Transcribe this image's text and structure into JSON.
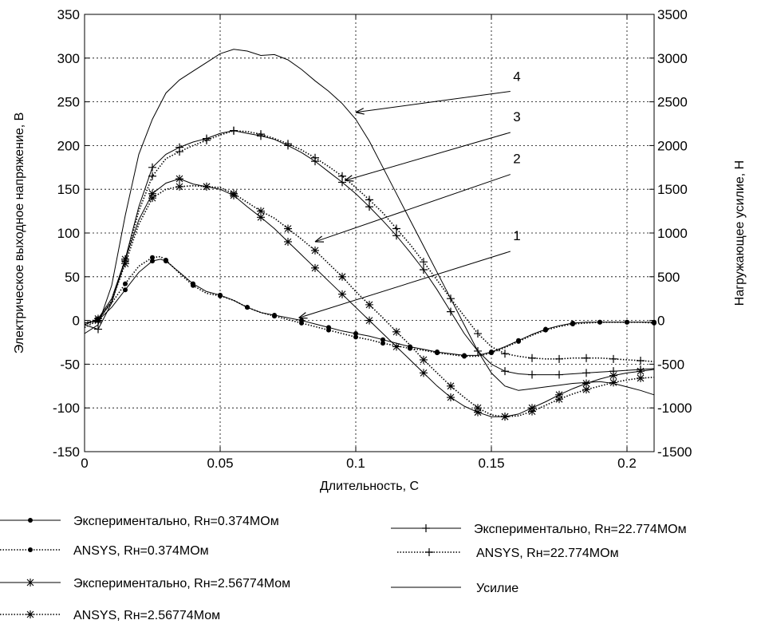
{
  "chart_data": {
    "type": "line",
    "xlabel": "Длительность, С",
    "ylabel": "Электрическое выходное напряжение, В",
    "y2label": "Нагружающее усилие, Н",
    "xlim": [
      0,
      0.21
    ],
    "ylim": [
      -150,
      350
    ],
    "y2lim": [
      -1500,
      3500
    ],
    "grid": true,
    "legend_position": "bottom",
    "x_ticks": [
      "0",
      "0.05",
      "0.1",
      "0.15",
      "0.2"
    ],
    "y_ticks": [
      "-150",
      "-100",
      "-50",
      "0",
      "50",
      "100",
      "150",
      "200",
      "250",
      "300",
      "350"
    ],
    "y2_ticks": [
      "-1500",
      "-1000",
      "-500",
      "0",
      "500",
      "1000",
      "1500",
      "2000",
      "2500",
      "3000",
      "3500"
    ],
    "callouts": [
      "1",
      "2",
      "3",
      "4"
    ],
    "series": [
      {
        "name": "Экспериментально, Rн=0.374MOм",
        "axis": "left",
        "style": "solid",
        "marker": "dot",
        "x": [
          0,
          0.005,
          0.01,
          0.015,
          0.02,
          0.025,
          0.028,
          0.03,
          0.035,
          0.04,
          0.045,
          0.05,
          0.055,
          0.06,
          0.065,
          0.07,
          0.075,
          0.08,
          0.085,
          0.09,
          0.095,
          0.1,
          0.105,
          0.11,
          0.115,
          0.12,
          0.125,
          0.13,
          0.135,
          0.14,
          0.145,
          0.15,
          0.155,
          0.16,
          0.165,
          0.17,
          0.175,
          0.18,
          0.185,
          0.19,
          0.195,
          0.2,
          0.205,
          0.21
        ],
        "y": [
          -3,
          0,
          15,
          35,
          55,
          68,
          70,
          68,
          55,
          42,
          33,
          29,
          23,
          15,
          9,
          6,
          3,
          0,
          -4,
          -8,
          -12,
          -15,
          -18,
          -22,
          -26,
          -30,
          -33,
          -36,
          -38,
          -40,
          -40,
          -36,
          -30,
          -23,
          -16,
          -10,
          -6,
          -3,
          -2,
          -2,
          -2,
          -2,
          -2,
          -2
        ]
      },
      {
        "name": "ANSYS, Rн=0.374MOм",
        "axis": "left",
        "style": "dotted",
        "marker": "dot",
        "x": [
          0,
          0.005,
          0.01,
          0.015,
          0.02,
          0.025,
          0.028,
          0.03,
          0.035,
          0.04,
          0.045,
          0.05,
          0.055,
          0.06,
          0.065,
          0.07,
          0.075,
          0.08,
          0.085,
          0.09,
          0.095,
          0.1,
          0.105,
          0.11,
          0.115,
          0.12,
          0.125,
          0.13,
          0.135,
          0.14,
          0.145,
          0.15,
          0.155,
          0.16,
          0.165,
          0.17,
          0.175,
          0.18,
          0.185,
          0.19,
          0.195,
          0.2,
          0.205,
          0.21
        ],
        "y": [
          -3,
          2,
          20,
          42,
          62,
          72,
          73,
          69,
          54,
          40,
          31,
          28,
          23,
          15,
          9,
          5,
          1,
          -3,
          -7,
          -11,
          -15,
          -19,
          -22,
          -26,
          -29,
          -32,
          -34,
          -37,
          -39,
          -41,
          -41,
          -37,
          -31,
          -24,
          -17,
          -11,
          -7,
          -4,
          -3,
          -2,
          -2,
          -2,
          -2,
          -3
        ]
      },
      {
        "name": "Экспериментально, Rн=2.56774Мом",
        "axis": "left",
        "style": "solid",
        "marker": "star",
        "x": [
          0,
          0.005,
          0.01,
          0.015,
          0.02,
          0.025,
          0.03,
          0.035,
          0.04,
          0.045,
          0.05,
          0.055,
          0.06,
          0.065,
          0.07,
          0.075,
          0.08,
          0.085,
          0.09,
          0.095,
          0.1,
          0.105,
          0.11,
          0.115,
          0.12,
          0.125,
          0.13,
          0.135,
          0.14,
          0.145,
          0.15,
          0.155,
          0.16,
          0.165,
          0.17,
          0.175,
          0.18,
          0.185,
          0.19,
          0.195,
          0.2,
          0.205,
          0.21
        ],
        "y": [
          -5,
          2,
          25,
          70,
          115,
          145,
          157,
          162,
          156,
          153,
          150,
          143,
          130,
          118,
          105,
          90,
          75,
          60,
          45,
          30,
          15,
          0,
          -15,
          -30,
          -45,
          -60,
          -75,
          -88,
          -98,
          -105,
          -110,
          -110,
          -107,
          -100,
          -93,
          -85,
          -78,
          -72,
          -67,
          -63,
          -60,
          -58,
          -56
        ]
      },
      {
        "name": "ANSYS, Rн=2.56774Мом",
        "axis": "left",
        "style": "dotted",
        "marker": "star",
        "x": [
          0,
          0.005,
          0.01,
          0.015,
          0.02,
          0.025,
          0.03,
          0.035,
          0.04,
          0.045,
          0.05,
          0.055,
          0.06,
          0.065,
          0.07,
          0.075,
          0.08,
          0.085,
          0.09,
          0.095,
          0.1,
          0.105,
          0.11,
          0.115,
          0.12,
          0.125,
          0.13,
          0.135,
          0.14,
          0.145,
          0.15,
          0.155,
          0.16,
          0.165,
          0.17,
          0.175,
          0.18,
          0.185,
          0.19,
          0.195,
          0.2,
          0.205,
          0.21
        ],
        "y": [
          -8,
          0,
          22,
          65,
          110,
          140,
          150,
          153,
          154,
          153,
          152,
          145,
          135,
          125,
          117,
          105,
          93,
          80,
          65,
          50,
          33,
          18,
          3,
          -13,
          -28,
          -45,
          -60,
          -75,
          -88,
          -100,
          -108,
          -110,
          -109,
          -104,
          -97,
          -90,
          -84,
          -79,
          -75,
          -71,
          -68,
          -66,
          -65
        ]
      },
      {
        "name": "Экспериментально, Rн=22.774MOм",
        "axis": "left",
        "style": "solid",
        "marker": "plus",
        "x": [
          0,
          0.005,
          0.01,
          0.015,
          0.02,
          0.025,
          0.03,
          0.035,
          0.04,
          0.045,
          0.05,
          0.055,
          0.06,
          0.065,
          0.07,
          0.075,
          0.08,
          0.085,
          0.09,
          0.095,
          0.1,
          0.105,
          0.11,
          0.115,
          0.12,
          0.125,
          0.13,
          0.135,
          0.14,
          0.145,
          0.15,
          0.155,
          0.16,
          0.165,
          0.17,
          0.175,
          0.18,
          0.185,
          0.19,
          0.195,
          0.2,
          0.205,
          0.21
        ],
        "y": [
          -5,
          -10,
          20,
          70,
          130,
          175,
          190,
          198,
          204,
          208,
          214,
          217,
          214,
          211,
          207,
          200,
          192,
          182,
          170,
          158,
          145,
          130,
          114,
          97,
          78,
          58,
          35,
          10,
          -15,
          -35,
          -50,
          -58,
          -61,
          -62,
          -62,
          -62,
          -61,
          -60,
          -59,
          -58,
          -57,
          -56,
          -55
        ]
      },
      {
        "name": "ANSYS, Rн=22.774MOм",
        "axis": "left",
        "style": "dotted",
        "marker": "plus",
        "x": [
          0,
          0.005,
          0.01,
          0.015,
          0.02,
          0.025,
          0.03,
          0.035,
          0.04,
          0.045,
          0.05,
          0.055,
          0.06,
          0.065,
          0.07,
          0.075,
          0.08,
          0.085,
          0.09,
          0.095,
          0.1,
          0.105,
          0.11,
          0.115,
          0.12,
          0.125,
          0.13,
          0.135,
          0.14,
          0.145,
          0.15,
          0.155,
          0.16,
          0.165,
          0.17,
          0.175,
          0.18,
          0.185,
          0.19,
          0.195,
          0.2,
          0.205,
          0.21
        ],
        "y": [
          -5,
          0,
          22,
          68,
          125,
          165,
          185,
          193,
          200,
          206,
          212,
          217,
          216,
          213,
          208,
          202,
          195,
          186,
          176,
          165,
          152,
          138,
          123,
          105,
          87,
          67,
          46,
          25,
          5,
          -15,
          -30,
          -38,
          -41,
          -43,
          -44,
          -44,
          -43,
          -43,
          -43,
          -44,
          -45,
          -46,
          -47
        ]
      },
      {
        "name": "Усилие",
        "axis": "right",
        "style": "solid",
        "marker": "none",
        "x": [
          0,
          0.005,
          0.01,
          0.015,
          0.02,
          0.025,
          0.03,
          0.035,
          0.04,
          0.045,
          0.05,
          0.055,
          0.06,
          0.065,
          0.07,
          0.075,
          0.08,
          0.085,
          0.09,
          0.095,
          0.1,
          0.105,
          0.11,
          0.115,
          0.12,
          0.125,
          0.13,
          0.135,
          0.14,
          0.145,
          0.15,
          0.155,
          0.16,
          0.165,
          0.17,
          0.175,
          0.18,
          0.185,
          0.19,
          0.195,
          0.2,
          0.205,
          0.21
        ],
        "y": [
          -150,
          -50,
          400,
          1200,
          1900,
          2300,
          2600,
          2750,
          2850,
          2950,
          3050,
          3100,
          3080,
          3030,
          3040,
          2980,
          2870,
          2740,
          2620,
          2480,
          2300,
          2050,
          1750,
          1450,
          1150,
          850,
          550,
          250,
          -50,
          -350,
          -600,
          -750,
          -800,
          -780,
          -760,
          -740,
          -720,
          -710,
          -700,
          -720,
          -760,
          -800,
          -850
        ]
      }
    ]
  }
}
